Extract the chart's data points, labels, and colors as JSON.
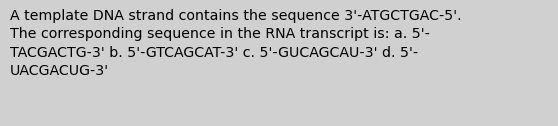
{
  "text": "A template DNA strand contains the sequence 3'-ATGCTGAC-5'.\nThe corresponding sequence in the RNA transcript is: a. 5'-\nTACGACTG-3' b. 5'-GTCAGCAT-3' c. 5'-GUCAGCAU-3' d. 5'-\nUACGACUG-3'",
  "background_color": "#d0d0d0",
  "text_color": "#000000",
  "font_size": 10.2,
  "fig_width": 5.58,
  "fig_height": 1.26
}
